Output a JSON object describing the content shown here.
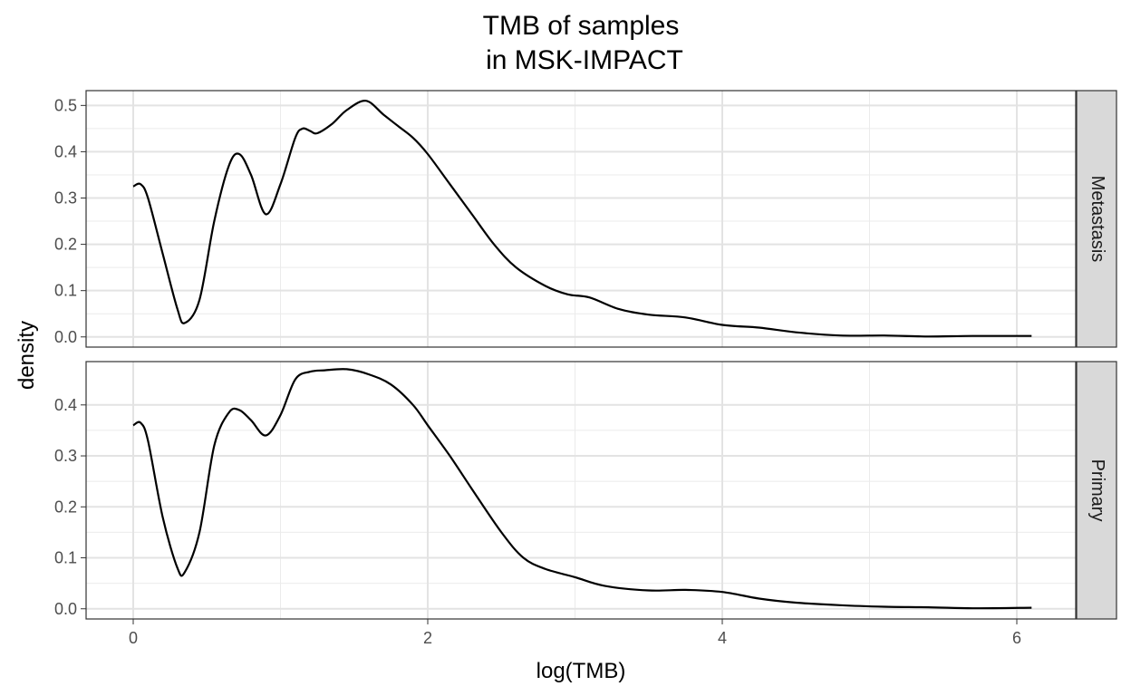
{
  "chart_data": {
    "type": "line",
    "title": [
      "TMB of samples",
      "in MSK-IMPACT"
    ],
    "xlabel": "log(TMB)",
    "ylabel": "density",
    "xlim": [
      -0.32,
      6.4
    ],
    "x_ticks": [
      0,
      2,
      4,
      6
    ],
    "grid": true,
    "panels": [
      {
        "name": "Metastasis",
        "ylim": [
          -0.022,
          0.532
        ],
        "y_ticks": [
          0.0,
          0.1,
          0.2,
          0.3,
          0.4,
          0.5
        ],
        "x": [
          0.0,
          0.05,
          0.1,
          0.2,
          0.3,
          0.35,
          0.45,
          0.55,
          0.65,
          0.72,
          0.8,
          0.9,
          1.0,
          1.1,
          1.15,
          1.2,
          1.25,
          1.35,
          1.45,
          1.58,
          1.7,
          1.8,
          1.9,
          2.0,
          2.15,
          2.3,
          2.45,
          2.6,
          2.8,
          2.95,
          3.1,
          3.3,
          3.5,
          3.75,
          4.0,
          4.25,
          4.5,
          4.8,
          5.1,
          5.4,
          5.7,
          6.1
        ],
        "y": [
          0.325,
          0.33,
          0.3,
          0.18,
          0.06,
          0.03,
          0.08,
          0.25,
          0.37,
          0.395,
          0.35,
          0.265,
          0.33,
          0.43,
          0.45,
          0.445,
          0.44,
          0.46,
          0.49,
          0.51,
          0.48,
          0.455,
          0.43,
          0.395,
          0.33,
          0.265,
          0.2,
          0.15,
          0.11,
          0.092,
          0.085,
          0.06,
          0.048,
          0.042,
          0.026,
          0.02,
          0.01,
          0.003,
          0.003,
          0.001,
          0.002,
          0.002
        ]
      },
      {
        "name": "Primary",
        "ylim": [
          -0.02,
          0.485
        ],
        "y_ticks": [
          0.0,
          0.1,
          0.2,
          0.3,
          0.4
        ],
        "x": [
          0.0,
          0.05,
          0.1,
          0.2,
          0.3,
          0.35,
          0.45,
          0.55,
          0.65,
          0.72,
          0.8,
          0.9,
          1.0,
          1.1,
          1.2,
          1.3,
          1.45,
          1.6,
          1.75,
          1.9,
          2.0,
          2.15,
          2.3,
          2.5,
          2.65,
          2.8,
          3.0,
          3.2,
          3.5,
          3.75,
          4.0,
          4.25,
          4.5,
          4.8,
          5.1,
          5.4,
          5.7,
          6.1
        ],
        "y": [
          0.36,
          0.365,
          0.33,
          0.18,
          0.08,
          0.072,
          0.15,
          0.32,
          0.385,
          0.39,
          0.37,
          0.34,
          0.38,
          0.45,
          0.465,
          0.468,
          0.47,
          0.46,
          0.44,
          0.4,
          0.36,
          0.3,
          0.235,
          0.15,
          0.1,
          0.078,
          0.062,
          0.045,
          0.036,
          0.037,
          0.033,
          0.02,
          0.012,
          0.007,
          0.004,
          0.003,
          0.001,
          0.002
        ]
      }
    ]
  }
}
